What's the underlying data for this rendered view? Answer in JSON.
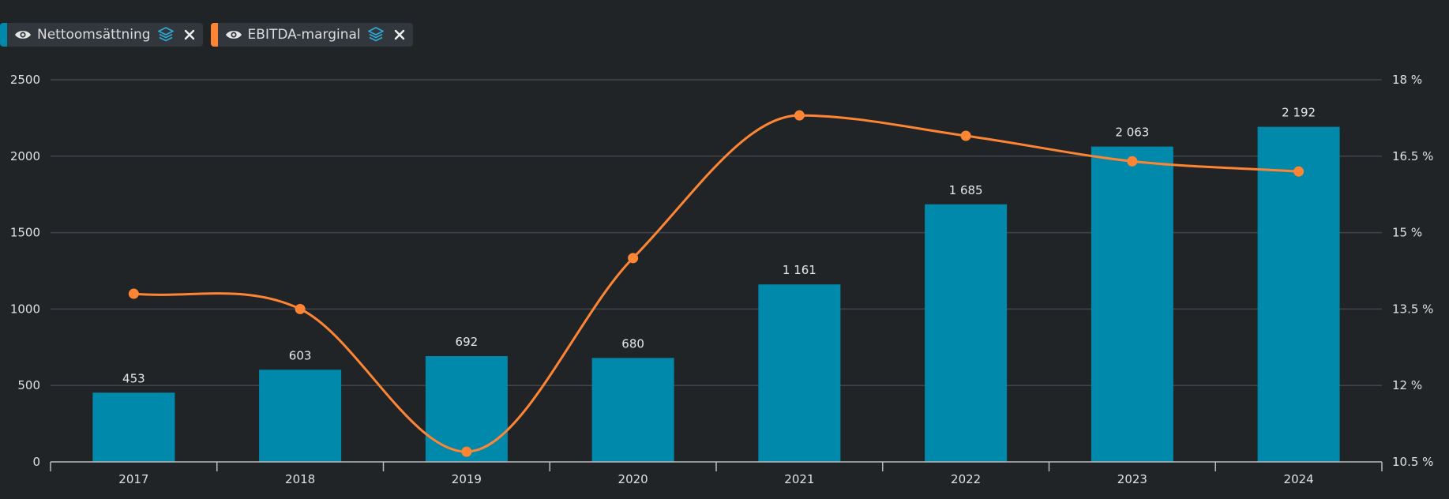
{
  "legend": {
    "items": [
      {
        "label": "Nettoomsättning",
        "color": "#0089aa",
        "icon": "eye-icon",
        "actions": [
          "layers-icon",
          "close-icon"
        ]
      },
      {
        "label": "EBITDA-marginal",
        "color": "#fd8534",
        "icon": "eye-icon",
        "actions": [
          "layers-icon",
          "close-icon"
        ]
      }
    ]
  },
  "colors": {
    "background": "#212427",
    "bar": "#0089aa",
    "line": "#fd8534",
    "grid": "#41464c",
    "axis": "#b9bcbf",
    "text": "#e0e0e0"
  },
  "chart_data": {
    "type": "bar",
    "categories": [
      "2017",
      "2018",
      "2019",
      "2020",
      "2021",
      "2022",
      "2023",
      "2024"
    ],
    "series": [
      {
        "type": "bar",
        "axis": "left",
        "values": [
          453,
          603,
          692,
          680,
          1161,
          1685,
          2063,
          2192
        ],
        "data_labels": [
          "453",
          "603",
          "692",
          "680",
          "1 161",
          "1 685",
          "2 063",
          "2 192"
        ]
      },
      {
        "type": "line",
        "axis": "right",
        "smooth": true,
        "markers": true,
        "values": [
          13.8,
          13.5,
          10.7,
          14.5,
          17.3,
          16.9,
          16.4,
          16.2
        ]
      }
    ],
    "y_left": {
      "range": [
        0,
        2500
      ],
      "ticks": [
        "0",
        "500",
        "1000",
        "1500",
        "2000",
        "2500"
      ]
    },
    "y_right": {
      "range": [
        10.5,
        18
      ],
      "ticks": [
        "10.5 %",
        "12 %",
        "13.5 %",
        "15 %",
        "16.5 %",
        "18 %"
      ]
    },
    "grid": true,
    "legend_position": "top-left"
  }
}
